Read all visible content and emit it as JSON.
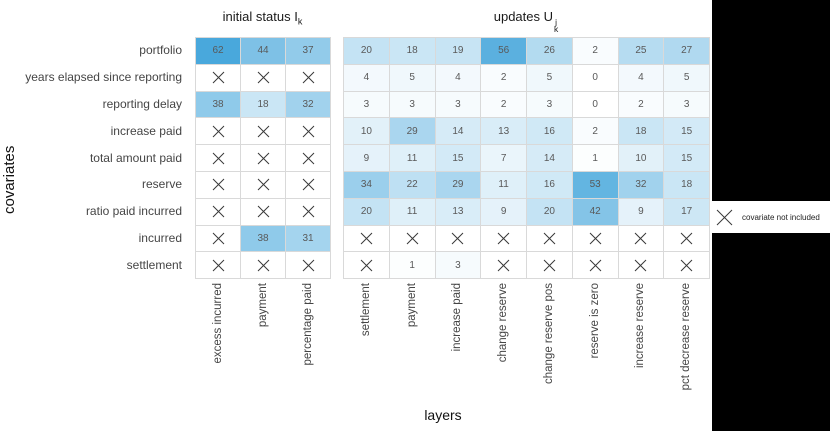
{
  "figure": {
    "ylabel": "covariates",
    "xlabel": "layers"
  },
  "titles": {
    "left_main": "initial status I",
    "left_sub": "k",
    "right_main": "updates U",
    "right_sup": "j",
    "right_sub": "k"
  },
  "legend": {
    "icon": "x-cross-icon",
    "label": "covariate not included"
  },
  "colors": {
    "heat_max": "#49a8dc",
    "heat_min": "#ffffff",
    "cell_text": "#595959",
    "grid_line": "#d9d9d9",
    "row_label": "#454545",
    "cross": "#383838",
    "side_panel": "#000000"
  },
  "chart_data": {
    "type": "heatmap",
    "vmax": 62,
    "null_meaning": "covariate not included",
    "rows": [
      "portfolio",
      "years elapsed since reporting",
      "reporting delay",
      "increase paid",
      "total amount paid",
      "reserve",
      "ratio paid incurred",
      "incurred",
      "settlement"
    ],
    "panels": [
      {
        "name": "initial-status",
        "title": "initial status I_k",
        "columns": [
          "excess incurred",
          "payment",
          "percentage paid"
        ],
        "values": [
          [
            62,
            44,
            37
          ],
          [
            null,
            null,
            null
          ],
          [
            38,
            18,
            32
          ],
          [
            null,
            null,
            null
          ],
          [
            null,
            null,
            null
          ],
          [
            null,
            null,
            null
          ],
          [
            null,
            null,
            null
          ],
          [
            null,
            38,
            31
          ],
          [
            null,
            null,
            null
          ]
        ]
      },
      {
        "name": "updates",
        "title": "updates U_k^j",
        "columns": [
          "settlement",
          "payment",
          "increase paid",
          "change reserve",
          "change reserve pos",
          "reserve is zero",
          "increase reserve",
          "pct decrease reserve"
        ],
        "values": [
          [
            20,
            18,
            19,
            56,
            26,
            2,
            25,
            27
          ],
          [
            4,
            5,
            4,
            2,
            5,
            0,
            4,
            5
          ],
          [
            3,
            3,
            3,
            2,
            3,
            0,
            2,
            3
          ],
          [
            10,
            29,
            14,
            13,
            16,
            2,
            18,
            15
          ],
          [
            9,
            11,
            15,
            7,
            14,
            1,
            10,
            15
          ],
          [
            34,
            22,
            29,
            11,
            16,
            53,
            32,
            18
          ],
          [
            20,
            11,
            13,
            9,
            20,
            42,
            9,
            17
          ],
          [
            null,
            null,
            null,
            null,
            null,
            null,
            null,
            null
          ],
          [
            null,
            1,
            3,
            null,
            null,
            null,
            null,
            null
          ]
        ]
      }
    ]
  }
}
